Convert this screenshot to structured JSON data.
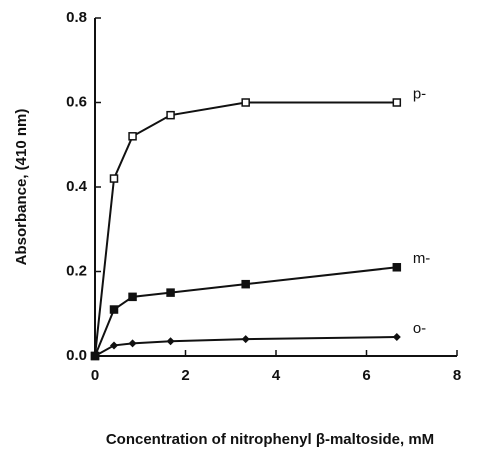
{
  "chart_data": {
    "type": "line",
    "x_label": "Concentration of nitrophenyl β-maltoside, mM",
    "y_label": "Absorbance,   (410 nm)",
    "x": [
      0,
      0.42,
      0.83,
      1.67,
      3.33,
      6.67
    ],
    "series": [
      {
        "name": "p-",
        "color": "#111111",
        "marker": "open-square",
        "values": [
          0,
          0.42,
          0.52,
          0.57,
          0.6,
          0.6
        ]
      },
      {
        "name": "m-",
        "color": "#111111",
        "marker": "filled-square",
        "values": [
          0,
          0.11,
          0.14,
          0.15,
          0.17,
          0.21
        ]
      },
      {
        "name": "o-",
        "color": "#111111",
        "marker": "diamond",
        "values": [
          0,
          0.025,
          0.03,
          0.035,
          0.04,
          0.045
        ]
      }
    ],
    "xlim": [
      0,
      8
    ],
    "xticks": [
      0,
      2,
      4,
      6,
      8
    ],
    "ylim": [
      0,
      0.8
    ],
    "yticks": [
      {
        "value": 0,
        "label": "0.0"
      },
      0.2,
      0.4,
      0.6,
      0.8
    ]
  }
}
